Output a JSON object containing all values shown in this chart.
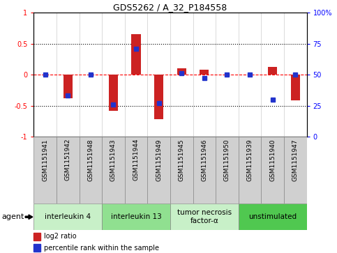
{
  "title": "GDS5262 / A_32_P184558",
  "samples": [
    "GSM1151941",
    "GSM1151942",
    "GSM1151948",
    "GSM1151943",
    "GSM1151944",
    "GSM1151949",
    "GSM1151945",
    "GSM1151946",
    "GSM1151950",
    "GSM1151939",
    "GSM1151940",
    "GSM1151947"
  ],
  "log2_ratio": [
    0.0,
    -0.38,
    0.0,
    -0.58,
    0.65,
    -0.72,
    0.1,
    0.08,
    0.0,
    0.0,
    0.13,
    -0.42
  ],
  "percentile": [
    50,
    33,
    50,
    26,
    71,
    27,
    51,
    47,
    50,
    50,
    30,
    50
  ],
  "groups": [
    {
      "label": "interleukin 4",
      "start": 0,
      "end": 3,
      "color": "#c8f0c8"
    },
    {
      "label": "interleukin 13",
      "start": 3,
      "end": 6,
      "color": "#90e090"
    },
    {
      "label": "tumor necrosis\nfactor-α",
      "start": 6,
      "end": 9,
      "color": "#c8f0c8"
    },
    {
      "label": "unstimulated",
      "start": 9,
      "end": 12,
      "color": "#50c850"
    }
  ],
  "ylim": [
    -1.0,
    1.0
  ],
  "yticks_left": [
    -1.0,
    -0.5,
    0.0,
    0.5
  ],
  "yticks_left_labels": [
    "-1",
    "-0.5",
    "0",
    "0.5"
  ],
  "ytick_top": 1.0,
  "yticks_right": [
    0,
    25,
    50,
    75,
    100
  ],
  "bar_color": "#cc2222",
  "dot_color": "#2233cc",
  "bar_width": 0.4,
  "dot_size": 4,
  "legend_items": [
    "log2 ratio",
    "percentile rank within the sample"
  ],
  "agent_label": "agent",
  "sample_box_color": "#d0d0d0",
  "fig_bg": "#ffffff",
  "title_fontsize": 9,
  "label_fontsize": 6.5,
  "group_fontsize": 7.5,
  "legend_fontsize": 7,
  "agent_fontsize": 8
}
